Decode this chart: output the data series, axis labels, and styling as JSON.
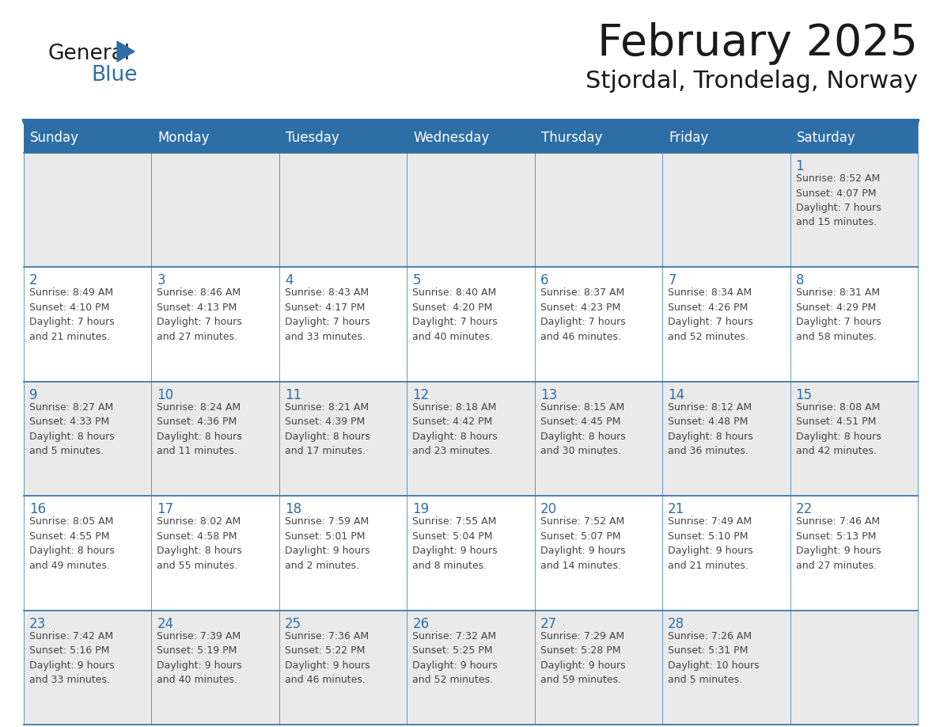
{
  "title": "February 2025",
  "subtitle": "Stjordal, Trondelag, Norway",
  "header_bg": "#2E6EA6",
  "header_text_color": "#FFFFFF",
  "cell_bg_light": "#EAEAEA",
  "cell_bg_white": "#FFFFFF",
  "border_color": "#2E6EA6",
  "text_color": "#444444",
  "day_num_color": "#2E6EA6",
  "days_of_week": [
    "Sunday",
    "Monday",
    "Tuesday",
    "Wednesday",
    "Thursday",
    "Friday",
    "Saturday"
  ],
  "weeks": [
    [
      {
        "day": "",
        "info": ""
      },
      {
        "day": "",
        "info": ""
      },
      {
        "day": "",
        "info": ""
      },
      {
        "day": "",
        "info": ""
      },
      {
        "day": "",
        "info": ""
      },
      {
        "day": "",
        "info": ""
      },
      {
        "day": "1",
        "info": "Sunrise: 8:52 AM\nSunset: 4:07 PM\nDaylight: 7 hours\nand 15 minutes."
      }
    ],
    [
      {
        "day": "2",
        "info": "Sunrise: 8:49 AM\nSunset: 4:10 PM\nDaylight: 7 hours\nand 21 minutes."
      },
      {
        "day": "3",
        "info": "Sunrise: 8:46 AM\nSunset: 4:13 PM\nDaylight: 7 hours\nand 27 minutes."
      },
      {
        "day": "4",
        "info": "Sunrise: 8:43 AM\nSunset: 4:17 PM\nDaylight: 7 hours\nand 33 minutes."
      },
      {
        "day": "5",
        "info": "Sunrise: 8:40 AM\nSunset: 4:20 PM\nDaylight: 7 hours\nand 40 minutes."
      },
      {
        "day": "6",
        "info": "Sunrise: 8:37 AM\nSunset: 4:23 PM\nDaylight: 7 hours\nand 46 minutes."
      },
      {
        "day": "7",
        "info": "Sunrise: 8:34 AM\nSunset: 4:26 PM\nDaylight: 7 hours\nand 52 minutes."
      },
      {
        "day": "8",
        "info": "Sunrise: 8:31 AM\nSunset: 4:29 PM\nDaylight: 7 hours\nand 58 minutes."
      }
    ],
    [
      {
        "day": "9",
        "info": "Sunrise: 8:27 AM\nSunset: 4:33 PM\nDaylight: 8 hours\nand 5 minutes."
      },
      {
        "day": "10",
        "info": "Sunrise: 8:24 AM\nSunset: 4:36 PM\nDaylight: 8 hours\nand 11 minutes."
      },
      {
        "day": "11",
        "info": "Sunrise: 8:21 AM\nSunset: 4:39 PM\nDaylight: 8 hours\nand 17 minutes."
      },
      {
        "day": "12",
        "info": "Sunrise: 8:18 AM\nSunset: 4:42 PM\nDaylight: 8 hours\nand 23 minutes."
      },
      {
        "day": "13",
        "info": "Sunrise: 8:15 AM\nSunset: 4:45 PM\nDaylight: 8 hours\nand 30 minutes."
      },
      {
        "day": "14",
        "info": "Sunrise: 8:12 AM\nSunset: 4:48 PM\nDaylight: 8 hours\nand 36 minutes."
      },
      {
        "day": "15",
        "info": "Sunrise: 8:08 AM\nSunset: 4:51 PM\nDaylight: 8 hours\nand 42 minutes."
      }
    ],
    [
      {
        "day": "16",
        "info": "Sunrise: 8:05 AM\nSunset: 4:55 PM\nDaylight: 8 hours\nand 49 minutes."
      },
      {
        "day": "17",
        "info": "Sunrise: 8:02 AM\nSunset: 4:58 PM\nDaylight: 8 hours\nand 55 minutes."
      },
      {
        "day": "18",
        "info": "Sunrise: 7:59 AM\nSunset: 5:01 PM\nDaylight: 9 hours\nand 2 minutes."
      },
      {
        "day": "19",
        "info": "Sunrise: 7:55 AM\nSunset: 5:04 PM\nDaylight: 9 hours\nand 8 minutes."
      },
      {
        "day": "20",
        "info": "Sunrise: 7:52 AM\nSunset: 5:07 PM\nDaylight: 9 hours\nand 14 minutes."
      },
      {
        "day": "21",
        "info": "Sunrise: 7:49 AM\nSunset: 5:10 PM\nDaylight: 9 hours\nand 21 minutes."
      },
      {
        "day": "22",
        "info": "Sunrise: 7:46 AM\nSunset: 5:13 PM\nDaylight: 9 hours\nand 27 minutes."
      }
    ],
    [
      {
        "day": "23",
        "info": "Sunrise: 7:42 AM\nSunset: 5:16 PM\nDaylight: 9 hours\nand 33 minutes."
      },
      {
        "day": "24",
        "info": "Sunrise: 7:39 AM\nSunset: 5:19 PM\nDaylight: 9 hours\nand 40 minutes."
      },
      {
        "day": "25",
        "info": "Sunrise: 7:36 AM\nSunset: 5:22 PM\nDaylight: 9 hours\nand 46 minutes."
      },
      {
        "day": "26",
        "info": "Sunrise: 7:32 AM\nSunset: 5:25 PM\nDaylight: 9 hours\nand 52 minutes."
      },
      {
        "day": "27",
        "info": "Sunrise: 7:29 AM\nSunset: 5:28 PM\nDaylight: 9 hours\nand 59 minutes."
      },
      {
        "day": "28",
        "info": "Sunrise: 7:26 AM\nSunset: 5:31 PM\nDaylight: 10 hours\nand 5 minutes."
      },
      {
        "day": "",
        "info": ""
      }
    ]
  ]
}
